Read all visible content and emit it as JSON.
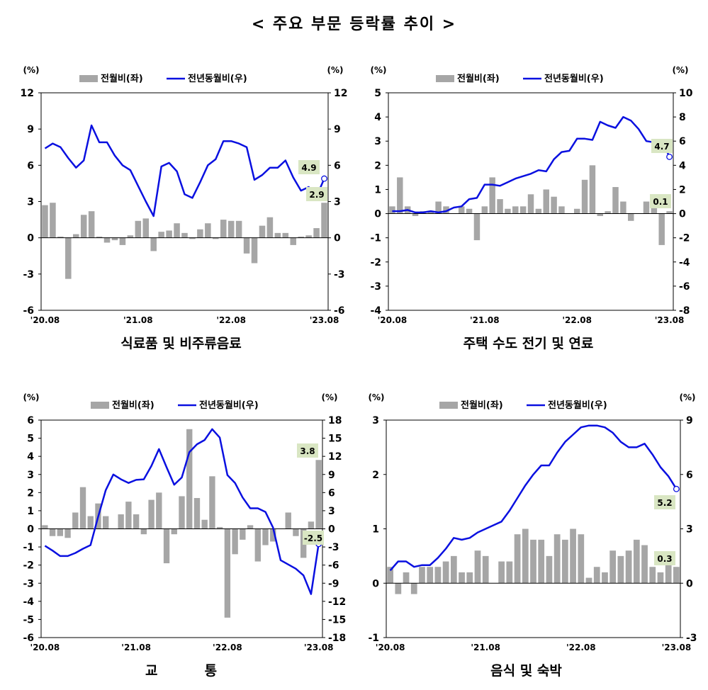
{
  "page_title": "< 주요 부문 등락률 추이 >",
  "colors": {
    "bar": "#a6a6a6",
    "line": "#0a10e0",
    "label_bg": "#d9e6c3",
    "end_marker_fill": "#ffffff"
  },
  "x_ticks": [
    "'20.08",
    "'21.08",
    "'22.08",
    "'23.08"
  ],
  "chart_data": [
    {
      "type": "bar+line",
      "title": "식료품 및 비주류음료",
      "left_unit": "(%)",
      "right_unit": "(%)",
      "legend": [
        "전월비(좌)",
        "전년동월비(우)"
      ],
      "ylim_left": [
        -6,
        12
      ],
      "yticks_left": [
        "12",
        "9",
        "6",
        "3",
        "0",
        "-3",
        "-6"
      ],
      "ylim_right": [
        -6,
        12
      ],
      "yticks_right": [
        "12",
        "9",
        "6",
        "3",
        "0",
        "-3",
        "-6"
      ],
      "x_ticks": [
        "'20.08",
        "'21.08",
        "'22.08",
        "'23.08"
      ],
      "series": [
        {
          "name": "전월비(좌)",
          "axis": "left",
          "values": [
            2.7,
            2.9,
            0.1,
            -3.4,
            0.3,
            1.9,
            2.2,
            0.1,
            -0.4,
            -0.2,
            -0.6,
            0.2,
            1.4,
            1.6,
            -1.1,
            0.5,
            0.6,
            1.2,
            0.4,
            -0.1,
            0.7,
            1.2,
            -0.1,
            1.5,
            1.4,
            1.4,
            -1.3,
            -2.1,
            1.0,
            1.7,
            0.4,
            0.4,
            -0.6,
            0.1,
            0.2,
            0.8,
            2.9
          ]
        },
        {
          "name": "전년동월비(우)",
          "axis": "right",
          "values": [
            7.4,
            7.8,
            7.5,
            6.6,
            5.8,
            6.4,
            9.3,
            7.9,
            7.9,
            6.8,
            6.0,
            5.6,
            4.3,
            3.0,
            1.8,
            5.9,
            6.2,
            5.5,
            3.6,
            3.3,
            4.6,
            6.0,
            6.5,
            8.0,
            8.0,
            7.8,
            7.5,
            4.8,
            5.2,
            5.8,
            5.8,
            6.4,
            5.0,
            3.9,
            4.2,
            3.4,
            4.9
          ]
        }
      ],
      "annotations": [
        "4.9",
        "2.9"
      ]
    },
    {
      "type": "bar+line",
      "title": "주택 수도 전기 및 연료",
      "left_unit": "(%)",
      "right_unit": "(%)",
      "legend": [
        "전월비(좌)",
        "전년동월비(우)"
      ],
      "ylim_left": [
        -4,
        5
      ],
      "yticks_left": [
        "5",
        "4",
        "3",
        "2",
        "1",
        "0",
        "-1",
        "-2",
        "-3",
        "-4"
      ],
      "ylim_right": [
        -8,
        10
      ],
      "yticks_right": [
        "10",
        "8",
        "6",
        "4",
        "2",
        "0",
        "-2",
        "-4",
        "-6",
        "-8"
      ],
      "x_ticks": [
        "'20.08",
        "'21.08",
        "'22.08",
        "'23.08"
      ],
      "series": [
        {
          "name": "전월비(좌)",
          "axis": "left",
          "values": [
            0.3,
            1.5,
            0.3,
            -0.1,
            0.1,
            0.1,
            0.5,
            0.3,
            0.0,
            0.3,
            0.2,
            -1.1,
            0.3,
            1.5,
            0.6,
            0.2,
            0.3,
            0.3,
            0.8,
            0.2,
            1.0,
            0.7,
            0.3,
            0.0,
            0.2,
            1.4,
            2.0,
            -0.1,
            0.1,
            1.1,
            0.5,
            -0.3,
            0.0,
            0.5,
            0.5,
            -1.3,
            0.1
          ]
        },
        {
          "name": "전년동월비(우)",
          "axis": "right",
          "values": [
            0.2,
            0.2,
            0.3,
            0.1,
            0.1,
            0.2,
            0.1,
            0.2,
            0.5,
            0.6,
            1.2,
            1.3,
            2.4,
            2.4,
            2.3,
            2.6,
            2.9,
            3.1,
            3.3,
            3.6,
            3.5,
            4.5,
            5.1,
            5.2,
            6.2,
            6.2,
            6.1,
            7.6,
            7.3,
            7.1,
            8.0,
            7.7,
            7.0,
            6.0,
            5.9,
            6.1,
            4.7
          ]
        }
      ],
      "annotations": [
        "4.7",
        "0.1"
      ]
    },
    {
      "type": "bar+line",
      "title": "교          통",
      "left_unit": "(%)",
      "right_unit": "(%)",
      "legend": [
        "전월비(좌)",
        "전년동월비(우)"
      ],
      "ylim_left": [
        -6,
        6
      ],
      "yticks_left": [
        "6",
        "5",
        "4",
        "3",
        "2",
        "1",
        "0",
        "-1",
        "-2",
        "-3",
        "-4",
        "-5",
        "-6"
      ],
      "ylim_right": [
        -18,
        18
      ],
      "yticks_right": [
        "18",
        "15",
        "12",
        "9",
        "6",
        "3",
        "0",
        "-3",
        "-6",
        "-9",
        "-12",
        "-15",
        "-18"
      ],
      "x_ticks": [
        "'20.08",
        "'21.08",
        "'22.08",
        "'23.08"
      ],
      "series": [
        {
          "name": "전월비(좌)",
          "axis": "left",
          "values": [
            0.2,
            -0.4,
            -0.4,
            -0.5,
            0.9,
            2.3,
            0.7,
            1.4,
            0.7,
            0.0,
            0.8,
            1.5,
            0.8,
            -0.3,
            1.6,
            2.0,
            -1.9,
            -0.3,
            1.8,
            5.5,
            1.7,
            0.5,
            2.9,
            0.1,
            -4.9,
            -1.4,
            -0.6,
            0.2,
            -1.8,
            -0.9,
            -0.7,
            0.0,
            0.9,
            -0.4,
            -1.6,
            0.4,
            3.8
          ]
        },
        {
          "name": "전년동월비(우)",
          "axis": "right",
          "values": [
            -2.8,
            -3.6,
            -4.5,
            -4.5,
            -4.0,
            -3.3,
            -2.7,
            2.0,
            6.4,
            9.0,
            8.2,
            7.6,
            8.1,
            8.2,
            10.4,
            13.2,
            10.2,
            7.3,
            8.5,
            12.7,
            14.0,
            14.7,
            16.5,
            15.1,
            8.9,
            7.6,
            5.2,
            3.4,
            3.4,
            2.8,
            0.2,
            -5.2,
            -5.9,
            -6.6,
            -7.7,
            -10.8,
            -2.5
          ]
        }
      ],
      "annotations": [
        "3.8",
        "-2.5"
      ]
    },
    {
      "type": "bar+line",
      "title": "음식 및 숙박",
      "left_unit": "(%)",
      "right_unit": "(%)",
      "legend": [
        "전월비(좌)",
        "전년동월비(우)"
      ],
      "ylim_left": [
        -1,
        3
      ],
      "yticks_left": [
        "3",
        "2",
        "1",
        "0",
        "-1"
      ],
      "ylim_right": [
        -3,
        9
      ],
      "yticks_right": [
        "9",
        "6",
        "3",
        "0",
        "-3"
      ],
      "x_ticks": [
        "'20.08",
        "'21.08",
        "'22.08",
        "'23.08"
      ],
      "series": [
        {
          "name": "전월비(좌)",
          "axis": "left",
          "values": [
            0.3,
            -0.2,
            0.2,
            -0.2,
            0.3,
            0.3,
            0.3,
            0.4,
            0.5,
            0.2,
            0.2,
            0.6,
            0.5,
            0.0,
            0.4,
            0.4,
            0.9,
            1.0,
            0.8,
            0.8,
            0.5,
            0.9,
            0.8,
            1.0,
            0.9,
            0.1,
            0.3,
            0.2,
            0.6,
            0.5,
            0.6,
            0.8,
            0.7,
            0.3,
            0.2,
            0.5,
            0.3
          ]
        },
        {
          "name": "전년동월비(우)",
          "axis": "right",
          "values": [
            0.7,
            1.2,
            1.2,
            0.9,
            1.0,
            1.0,
            1.4,
            1.9,
            2.5,
            2.4,
            2.5,
            2.8,
            3.0,
            3.2,
            3.4,
            4.0,
            4.7,
            5.4,
            6.0,
            6.5,
            6.5,
            7.2,
            7.8,
            8.2,
            8.6,
            8.7,
            8.7,
            8.6,
            8.3,
            7.8,
            7.5,
            7.5,
            7.7,
            7.1,
            6.4,
            5.9,
            5.2
          ]
        }
      ],
      "annotations": [
        "5.2",
        "0.3"
      ]
    }
  ]
}
